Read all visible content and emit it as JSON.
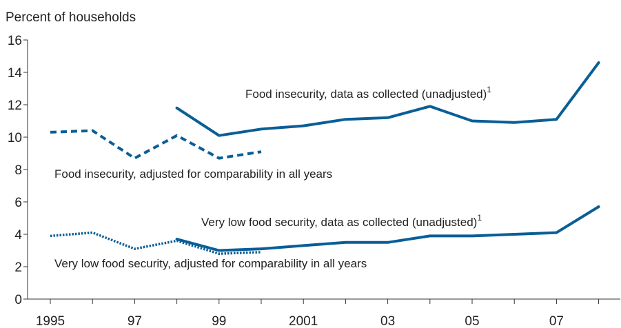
{
  "chart_data": {
    "type": "line",
    "ylabel": "Percent of households",
    "xlabel": "",
    "ylim": [
      0,
      16
    ],
    "yticks": [
      0,
      2,
      4,
      6,
      8,
      10,
      12,
      14,
      16
    ],
    "xlim": [
      1995,
      2008
    ],
    "x_tick_labels": [
      {
        "x": 1995,
        "label": "1995"
      },
      {
        "x": 1997,
        "label": "97"
      },
      {
        "x": 1999,
        "label": "99"
      },
      {
        "x": 2001,
        "label": "2001"
      },
      {
        "x": 2003,
        "label": "03"
      },
      {
        "x": 2005,
        "label": "05"
      },
      {
        "x": 2007,
        "label": "07"
      }
    ],
    "x_minor_ticks": [
      1996,
      1998,
      2000,
      2002,
      2004,
      2006,
      2008
    ],
    "grid": false,
    "color": "#0a5e96",
    "series": [
      {
        "style": "solid",
        "x": [
          1998,
          1999,
          2000,
          2001,
          2002,
          2003,
          2004,
          2005,
          2006,
          2007,
          2008
        ],
        "values": [
          11.8,
          10.1,
          10.5,
          10.7,
          11.1,
          11.2,
          11.9,
          11.0,
          10.9,
          11.1,
          14.6
        ]
      },
      {
        "style": "dashed",
        "x": [
          1995,
          1996,
          1997,
          1998,
          1999,
          2000
        ],
        "values": [
          10.3,
          10.4,
          8.7,
          10.1,
          8.7,
          9.1
        ]
      },
      {
        "style": "solid",
        "x": [
          1998,
          1999,
          2000,
          2001,
          2002,
          2003,
          2004,
          2005,
          2006,
          2007,
          2008
        ],
        "values": [
          3.7,
          3.0,
          3.1,
          3.3,
          3.5,
          3.5,
          3.9,
          3.9,
          4.0,
          4.1,
          5.7
        ]
      },
      {
        "style": "dotted",
        "x": [
          1995,
          1996,
          1997,
          1998,
          1999,
          2000
        ],
        "values": [
          3.9,
          4.1,
          3.1,
          3.6,
          2.8,
          2.9
        ]
      }
    ],
    "annotations": [
      {
        "id": "fi-unadj",
        "text": "Food insecurity, data as collected (unadjusted)",
        "sup": "1"
      },
      {
        "id": "fi-adj",
        "text": "Food insecurity, adjusted for comparability in all years",
        "sup": ""
      },
      {
        "id": "vlfs-unadj",
        "text": "Very low food security, data as collected (unadjusted)",
        "sup": "1"
      },
      {
        "id": "vlfs-adj",
        "text": "Very low food security, adjusted for comparability in all years",
        "sup": ""
      }
    ]
  }
}
